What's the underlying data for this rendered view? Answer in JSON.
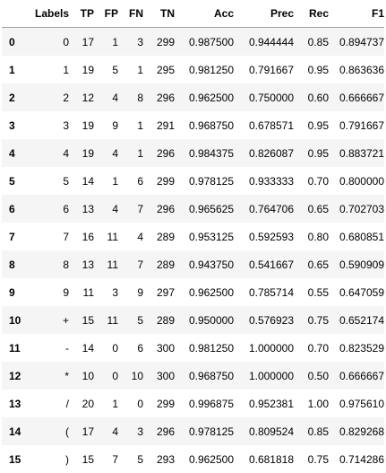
{
  "table": {
    "columns": [
      "",
      "Labels",
      "TP",
      "FP",
      "FN",
      "TN",
      "Acc",
      "Prec",
      "Rec",
      "F1"
    ],
    "rows": [
      {
        "index": "0",
        "cells": [
          "0",
          "17",
          "1",
          "3",
          "299",
          "0.987500",
          "0.944444",
          "0.85",
          "0.894737"
        ]
      },
      {
        "index": "1",
        "cells": [
          "1",
          "19",
          "5",
          "1",
          "295",
          "0.981250",
          "0.791667",
          "0.95",
          "0.863636"
        ]
      },
      {
        "index": "2",
        "cells": [
          "2",
          "12",
          "4",
          "8",
          "296",
          "0.962500",
          "0.750000",
          "0.60",
          "0.666667"
        ]
      },
      {
        "index": "3",
        "cells": [
          "3",
          "19",
          "9",
          "1",
          "291",
          "0.968750",
          "0.678571",
          "0.95",
          "0.791667"
        ]
      },
      {
        "index": "4",
        "cells": [
          "4",
          "19",
          "4",
          "1",
          "296",
          "0.984375",
          "0.826087",
          "0.95",
          "0.883721"
        ]
      },
      {
        "index": "5",
        "cells": [
          "5",
          "14",
          "1",
          "6",
          "299",
          "0.978125",
          "0.933333",
          "0.70",
          "0.800000"
        ]
      },
      {
        "index": "6",
        "cells": [
          "6",
          "13",
          "4",
          "7",
          "296",
          "0.965625",
          "0.764706",
          "0.65",
          "0.702703"
        ]
      },
      {
        "index": "7",
        "cells": [
          "7",
          "16",
          "11",
          "4",
          "289",
          "0.953125",
          "0.592593",
          "0.80",
          "0.680851"
        ]
      },
      {
        "index": "8",
        "cells": [
          "8",
          "13",
          "11",
          "7",
          "289",
          "0.943750",
          "0.541667",
          "0.65",
          "0.590909"
        ]
      },
      {
        "index": "9",
        "cells": [
          "9",
          "11",
          "3",
          "9",
          "297",
          "0.962500",
          "0.785714",
          "0.55",
          "0.647059"
        ]
      },
      {
        "index": "10",
        "cells": [
          "+",
          "15",
          "11",
          "5",
          "289",
          "0.950000",
          "0.576923",
          "0.75",
          "0.652174"
        ]
      },
      {
        "index": "11",
        "cells": [
          "-",
          "14",
          "0",
          "6",
          "300",
          "0.981250",
          "1.000000",
          "0.70",
          "0.823529"
        ]
      },
      {
        "index": "12",
        "cells": [
          "*",
          "10",
          "0",
          "10",
          "300",
          "0.968750",
          "1.000000",
          "0.50",
          "0.666667"
        ]
      },
      {
        "index": "13",
        "cells": [
          "/",
          "20",
          "1",
          "0",
          "299",
          "0.996875",
          "0.952381",
          "1.00",
          "0.975610"
        ]
      },
      {
        "index": "14",
        "cells": [
          "(",
          "17",
          "4",
          "3",
          "296",
          "0.978125",
          "0.809524",
          "0.85",
          "0.829268"
        ]
      },
      {
        "index": "15",
        "cells": [
          ")",
          "15",
          "7",
          "5",
          "293",
          "0.962500",
          "0.681818",
          "0.75",
          "0.714286"
        ]
      }
    ]
  }
}
